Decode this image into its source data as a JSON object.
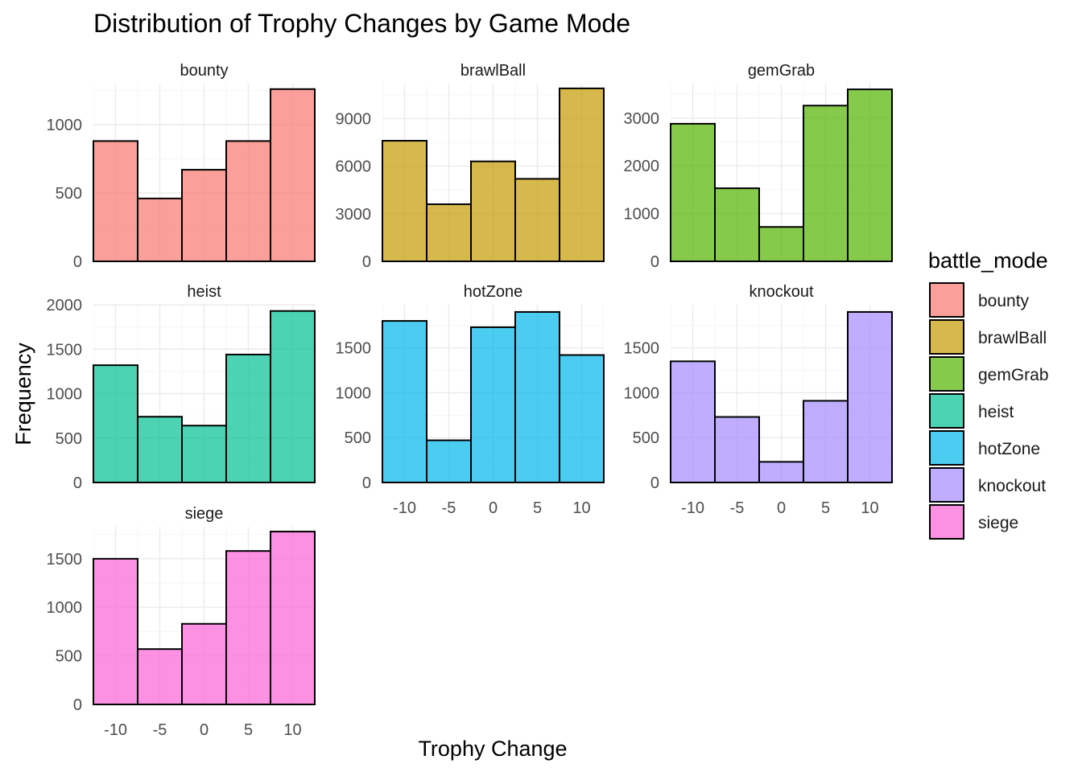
{
  "chart_data": {
    "type": "bar",
    "title": "Distribution of Trophy Changes by Game Mode",
    "xlabel": "Trophy Change",
    "ylabel": "Frequency",
    "legend_title": "battle_mode",
    "legend_position": "right",
    "grid": true,
    "bin_centers": [
      -10,
      -5,
      0,
      5,
      10
    ],
    "xlim": [
      -12.5,
      12.5
    ],
    "x_ticks": [
      -10,
      -5,
      0,
      5,
      10
    ],
    "panels": [
      {
        "name": "bounty",
        "color": "#F8766D",
        "values": [
          880,
          460,
          670,
          880,
          1260
        ],
        "ylim": [
          0,
          1300
        ],
        "y_ticks": [
          0,
          500,
          1000
        ]
      },
      {
        "name": "brawlBall",
        "color": "#C49A00",
        "values": [
          7600,
          3600,
          6300,
          5200,
          10900
        ],
        "ylim": [
          0,
          11200
        ],
        "y_ticks": [
          0,
          3000,
          6000,
          9000
        ]
      },
      {
        "name": "gemGrab",
        "color": "#53B400",
        "values": [
          2880,
          1530,
          720,
          3260,
          3600
        ],
        "ylim": [
          0,
          3720
        ],
        "y_ticks": [
          0,
          1000,
          2000,
          3000
        ]
      },
      {
        "name": "heist",
        "color": "#00C094",
        "values": [
          1320,
          740,
          640,
          1440,
          1930
        ],
        "ylim": [
          0,
          2000
        ],
        "y_ticks": [
          0,
          500,
          1000,
          1500,
          2000
        ]
      },
      {
        "name": "hotZone",
        "color": "#00B6EB",
        "values": [
          1800,
          470,
          1730,
          1900,
          1420
        ],
        "ylim": [
          0,
          1980
        ],
        "y_ticks": [
          0,
          500,
          1000,
          1500
        ]
      },
      {
        "name": "knockout",
        "color": "#A58AFF",
        "values": [
          1350,
          730,
          230,
          910,
          1900
        ],
        "ylim": [
          0,
          1980
        ],
        "y_ticks": [
          0,
          500,
          1000,
          1500
        ]
      },
      {
        "name": "siege",
        "color": "#FB61D7",
        "values": [
          1500,
          570,
          830,
          1580,
          1780
        ],
        "ylim": [
          0,
          1830
        ],
        "y_ticks": [
          0,
          500,
          1000,
          1500
        ]
      }
    ]
  }
}
